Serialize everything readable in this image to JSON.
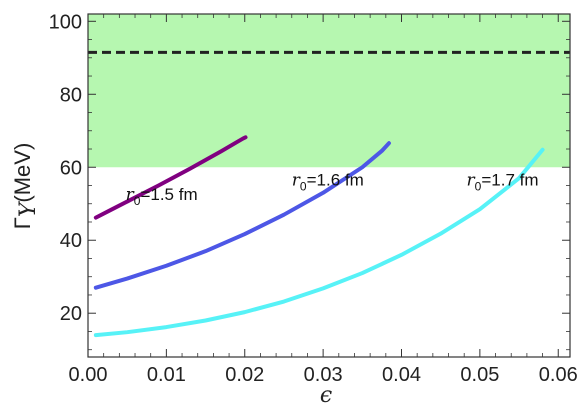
{
  "chart_data": {
    "type": "line",
    "xlabel": "ϵ",
    "ylabel_symbol": "Γ",
    "ylabel_subscript": "Y",
    "ylabel_unit": "(MeV)",
    "xlim": [
      0.0,
      0.0615
    ],
    "ylim": [
      8,
      102
    ],
    "x_ticks": [
      0.0,
      0.01,
      0.02,
      0.03,
      0.04,
      0.05,
      0.06
    ],
    "x_tick_labels": [
      "0.00",
      "0.01",
      "0.02",
      "0.03",
      "0.04",
      "0.05",
      "0.06"
    ],
    "y_ticks": [
      20,
      40,
      60,
      80,
      100
    ],
    "y_tick_labels": [
      "20",
      "40",
      "60",
      "80",
      "100"
    ],
    "band": {
      "y_from": 60,
      "y_to": 102,
      "color": "#b6f7b0"
    },
    "reference_line": {
      "y": 91.5,
      "style": "dashed",
      "color": "#222222"
    },
    "series": [
      {
        "label_prefix": "r",
        "label_sub": "0",
        "label_suffix": "=1.5 fm",
        "color": "#800080",
        "label_at": {
          "x": 0.0048,
          "y": 51
        },
        "x": [
          0.001,
          0.003,
          0.005,
          0.007,
          0.009,
          0.011,
          0.013,
          0.015,
          0.017,
          0.019,
          0.0198,
          0.0201
        ],
        "y": [
          46.2,
          48.4,
          50.6,
          52.8,
          55.0,
          57.3,
          59.6,
          62.0,
          64.4,
          66.9,
          67.9,
          68.2
        ]
      },
      {
        "label_prefix": "r",
        "label_sub": "0",
        "label_suffix": "=1.6 fm",
        "color": "#4d57e6",
        "label_at": {
          "x": 0.026,
          "y": 55
        },
        "x": [
          0.001,
          0.005,
          0.01,
          0.015,
          0.02,
          0.025,
          0.03,
          0.035,
          0.0375,
          0.0384
        ],
        "y": [
          27.0,
          29.5,
          33.0,
          37.0,
          41.7,
          47.0,
          53.0,
          60.0,
          64.5,
          66.6
        ]
      },
      {
        "label_prefix": "r",
        "label_sub": "0",
        "label_suffix": "=1.7 fm",
        "color": "#57f2f7",
        "label_at": {
          "x": 0.0483,
          "y": 55
        },
        "x": [
          0.001,
          0.005,
          0.01,
          0.015,
          0.02,
          0.025,
          0.03,
          0.035,
          0.04,
          0.045,
          0.05,
          0.055,
          0.058
        ],
        "y": [
          14.0,
          14.8,
          16.2,
          18.0,
          20.3,
          23.2,
          26.8,
          31.0,
          36.0,
          41.8,
          48.5,
          57.0,
          64.8
        ]
      }
    ]
  }
}
